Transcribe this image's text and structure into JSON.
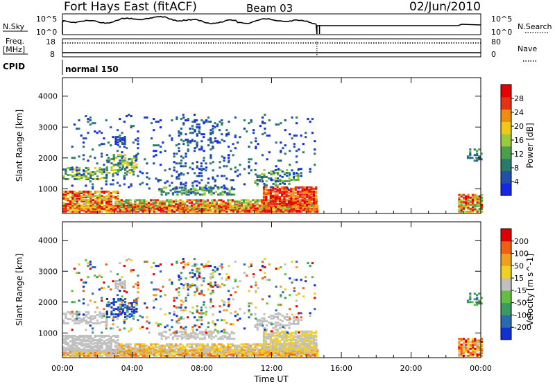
{
  "header": {
    "title": "Fort Hays East (fitACF)",
    "beam": "Beam 03",
    "date": "02/Jun/2010"
  },
  "top_panels": {
    "nsky_label": "N.Sky",
    "nsky_ticks": [
      "10^5",
      "10^0"
    ],
    "nsearch_label": "N.Search",
    "nsearch_ticks": [
      "10^5",
      "10^0"
    ],
    "freq_label": "Freq.",
    "freq_unit": "[MHz]",
    "freq_ticks": [
      "18",
      "8"
    ],
    "nave_label": "Nave",
    "nave_ticks": [
      "80",
      "0"
    ],
    "cpid_label": "CPID",
    "cpid_value": "normal 150"
  },
  "chart_data": [
    {
      "type": "heatmap",
      "panel": "power",
      "title": "",
      "xlabel": "",
      "ylabel": "Slant Range [km]",
      "y_ticks": [
        "1000",
        "2000",
        "3000",
        "4000"
      ],
      "ylim": [
        200,
        4600
      ],
      "xlim_hours": [
        0,
        24
      ],
      "colorbar_label": "Power [dB]",
      "colorbar_ticks": [
        "4",
        "8",
        "12",
        "16",
        "20",
        "24",
        "28"
      ],
      "colorbar_range": [
        0,
        32
      ],
      "colorscale": [
        "#1428e6",
        "#2050aa",
        "#2a7a6a",
        "#4aa04a",
        "#9acb3a",
        "#f2c818",
        "#f08a10",
        "#e83018",
        "#e60000"
      ],
      "data_gaps_hours": [
        [
          14.6,
          22.7
        ]
      ]
    },
    {
      "type": "heatmap",
      "panel": "velocity",
      "title": "",
      "xlabel": "Time UT",
      "ylabel": "Slant Range [km]",
      "x_ticks": [
        "00:00",
        "04:00",
        "08:00",
        "12:00",
        "16:00",
        "20:00",
        "00:00"
      ],
      "y_ticks": [
        "1000",
        "2000",
        "3000",
        "4000"
      ],
      "ylim": [
        200,
        4600
      ],
      "xlim_hours": [
        0,
        24
      ],
      "colorbar_label": "Velocity [m s^-1]",
      "colorbar_ticks": [
        "200",
        "100",
        "50",
        "15",
        "-15",
        "-50",
        "-100",
        "-200"
      ],
      "colorscale": [
        "#1030d0",
        "#2a6ab0",
        "#3a9a60",
        "#60c040",
        "#c0c0c0",
        "#f0d020",
        "#f0a020",
        "#f06010",
        "#e00000"
      ],
      "data_gaps_hours": [
        [
          14.6,
          22.7
        ]
      ]
    }
  ]
}
